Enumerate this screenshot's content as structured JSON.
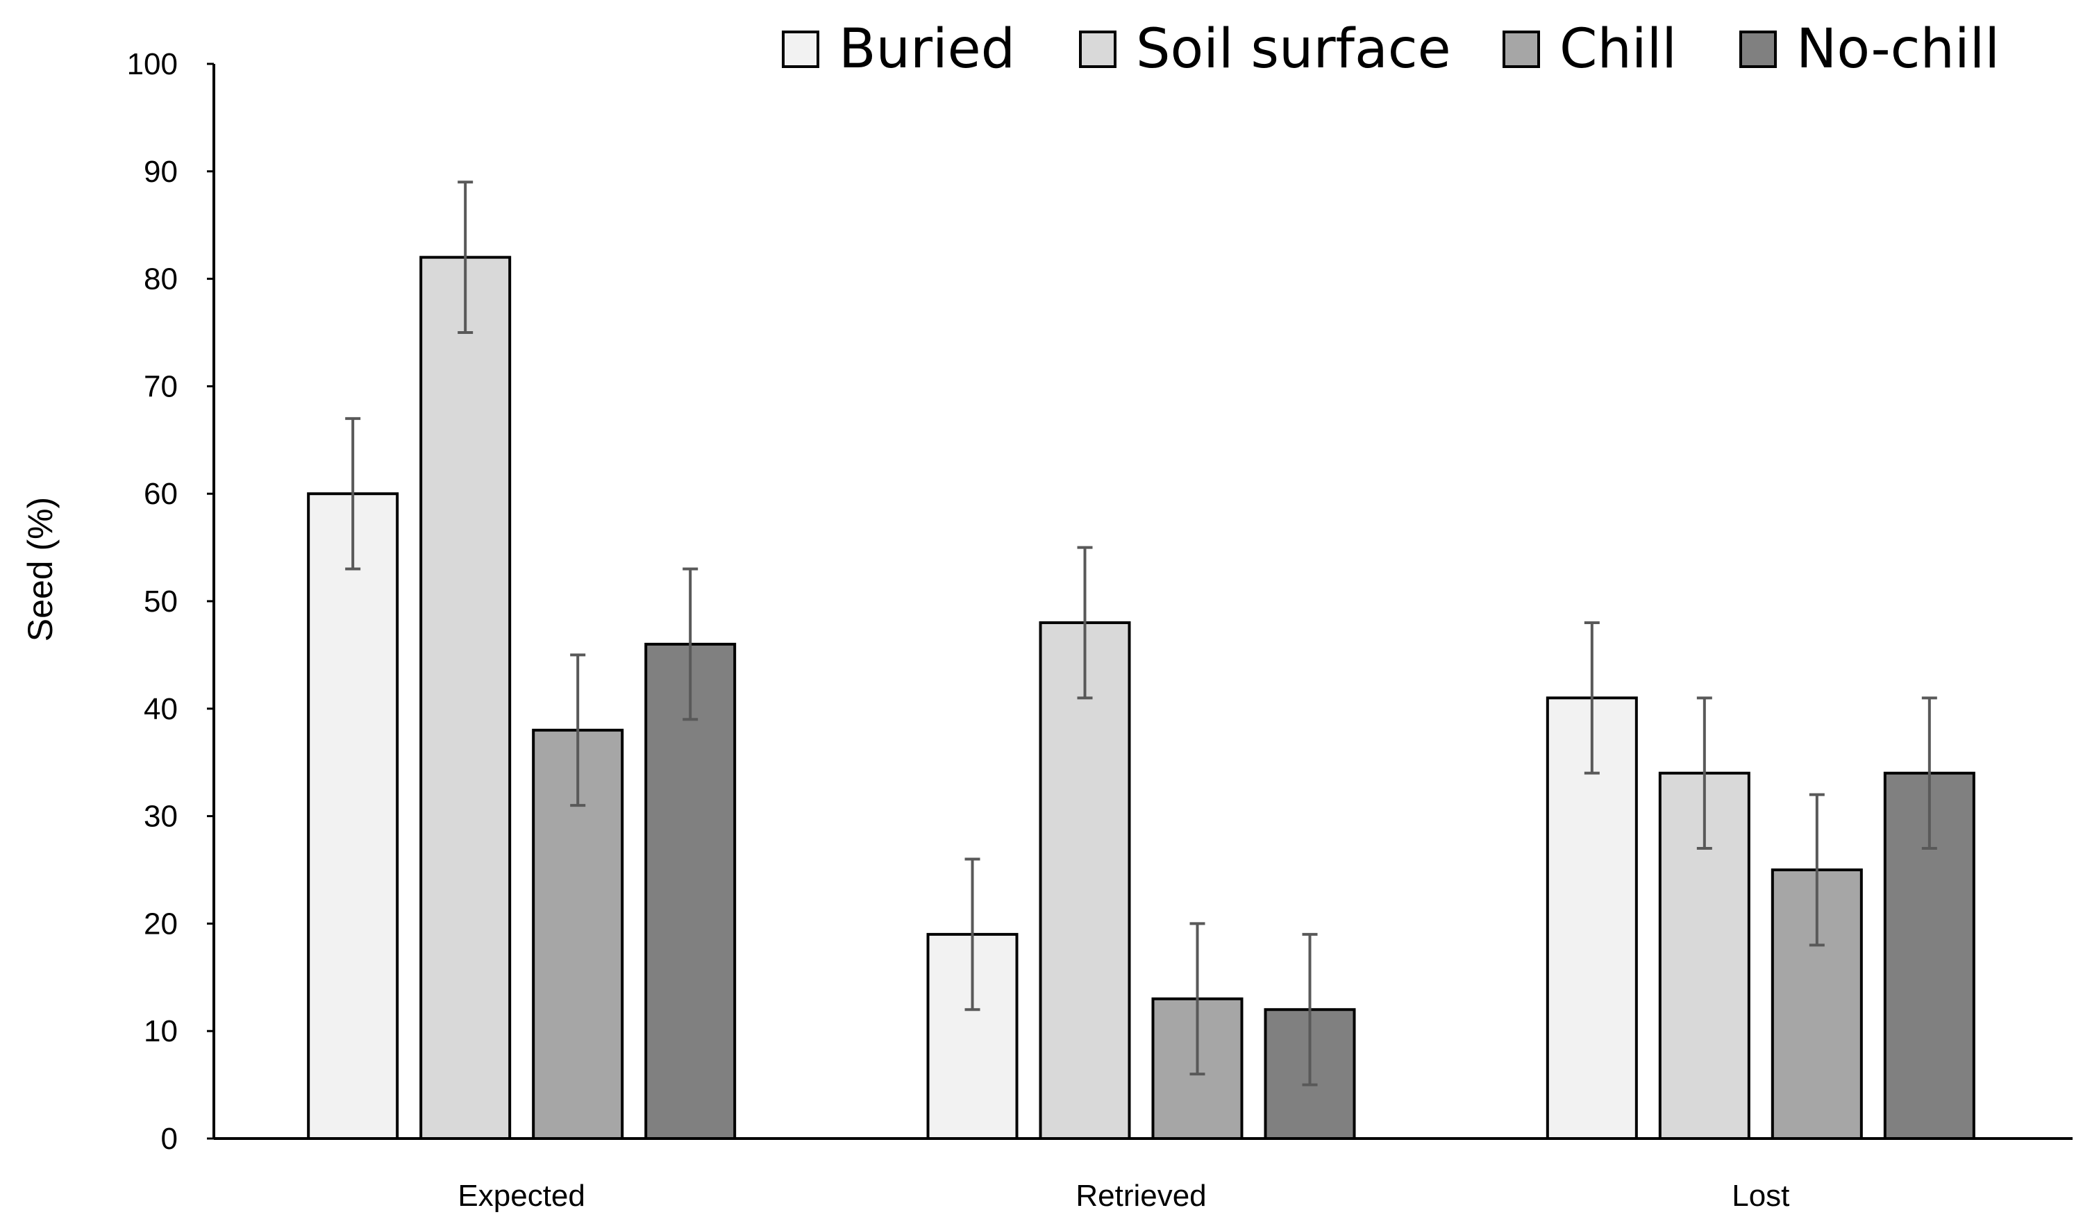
{
  "chart_data": {
    "type": "bar",
    "title": "",
    "xlabel": "",
    "ylabel": "Seed (%)",
    "ylim": [
      0,
      100
    ],
    "yticks": [
      "0",
      "10",
      "20",
      "30",
      "40",
      "50",
      "60",
      "70",
      "80",
      "90",
      "100"
    ],
    "grid": false,
    "legend_position": "top",
    "categories": [
      "Expected",
      "Retrieved",
      "Lost"
    ],
    "series": [
      {
        "name": "Buried",
        "color": "#f2f2f2",
        "values": [
          60,
          19,
          41
        ],
        "errors": [
          7,
          7,
          7
        ]
      },
      {
        "name": "Soil surface",
        "color": "#d9d9d9",
        "values": [
          82,
          48,
          34
        ],
        "errors": [
          7,
          7,
          7
        ]
      },
      {
        "name": "Chill",
        "color": "#a6a6a6",
        "values": [
          38,
          13,
          25
        ],
        "errors": [
          7,
          7,
          7
        ]
      },
      {
        "name": "No-chill",
        "color": "#808080",
        "values": [
          46,
          12,
          34
        ],
        "errors": [
          7,
          7,
          7
        ]
      }
    ]
  }
}
